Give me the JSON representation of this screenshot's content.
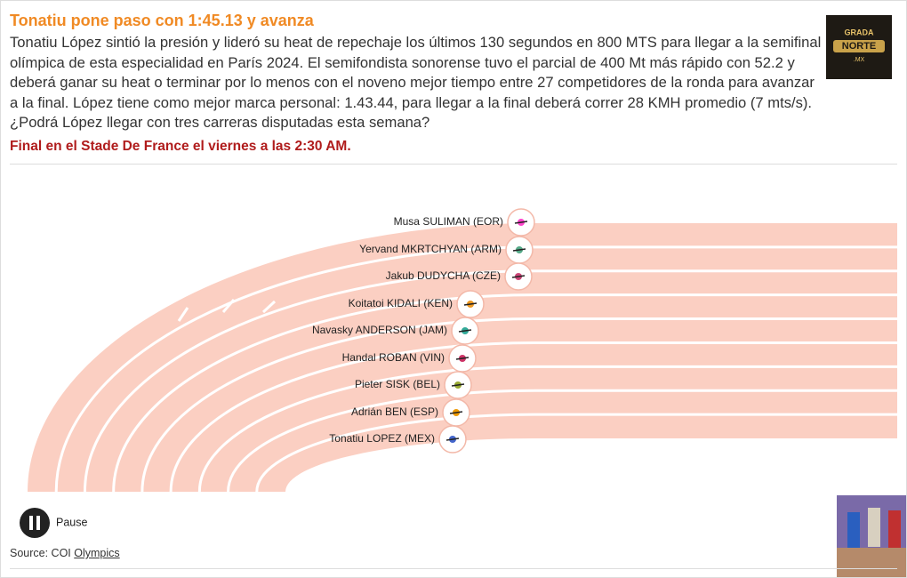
{
  "header": {
    "title": "Tonatiu pone paso con 1:45.13 y avanza",
    "description": "Tonatiu López sintió la presión y lideró su heat de repechaje los últimos 130 segundos en 800 MTS para llegar a la semifinal olímpica de esta especialidad en París 2024. El semifondista sonorense tuvo el parcial de 400 Mt más rápido con 52.2 y deberá ganar su heat o terminar por lo menos con el noveno mejor tiempo entre 27 competidores de la ronda para avanzar a la final. López tiene como mejor marca personal: 1.43.44, para llegar a la final deberá correr 28 KMH promedio (7 mts/s). ¿Podrá López llegar con tres carreras disputadas esta semana?",
    "subtitle": "Final en el Stade De France el viernes a las 2:30 AM.",
    "logo": {
      "line1": "GRADA",
      "line2": "NORTE",
      "line3": ".MX"
    }
  },
  "runners": [
    "Musa SULIMAN (EOR)",
    "Yervand MKRTCHYAN (ARM)",
    "Jakub DUDYCHA (CZE)",
    "Koitatoi KIDALI (KEN)",
    "Navasky ANDERSON (JAM)",
    "Handal ROBAN (VIN)",
    "Pieter SISK (BEL)",
    "Adrián BEN (ESP)",
    "Tonatiu LOPEZ (MEX)"
  ],
  "controls": {
    "pause": "Pause"
  },
  "footer": {
    "source": "Source: COI",
    "link": "Olympics"
  }
}
